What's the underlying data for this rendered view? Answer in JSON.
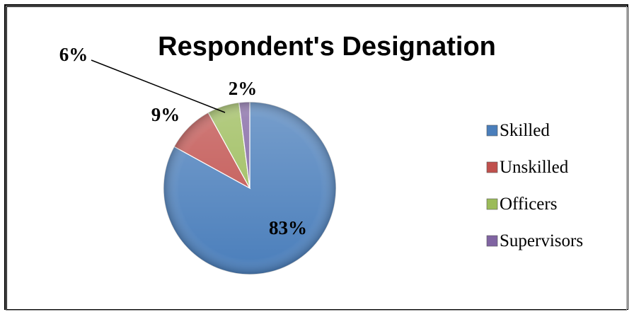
{
  "chart_data": {
    "type": "pie",
    "title": "Respondent's Designation",
    "categories": [
      "Skilled",
      "Unskilled",
      "Officers",
      "Supervisors"
    ],
    "values": [
      83,
      9,
      6,
      2
    ],
    "labels": [
      "83%",
      "9%",
      "6%",
      "2%"
    ],
    "colors": [
      "#4a7ebb",
      "#c0504d",
      "#9bbb59",
      "#8064a2"
    ],
    "legend_position": "right",
    "style": "3d-bevel"
  }
}
